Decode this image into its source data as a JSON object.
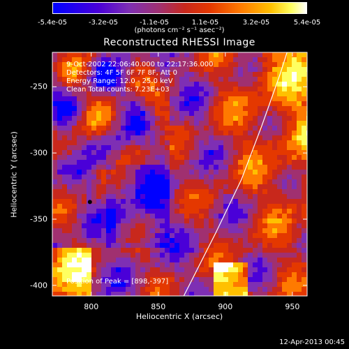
{
  "colorbar": {
    "ticks": [
      "-5.4e-05",
      "-3.2e-05",
      "-1.1e-05",
      "1.1e-05",
      "3.2e-05",
      "5.4e-05"
    ],
    "units": "(photons cm⁻² s⁻¹ asec⁻²)"
  },
  "info": {
    "time_range": "9-Oct-2002 22:06:40.000 to 22:17:36.000",
    "detectors": "Detectors: 4F 5F 6F 7F 8F, Att 0",
    "energy": "Energy Range: 12.0 - 25.0 keV",
    "clean": "Clean     Total counts: 7.23E+03",
    "peak": "Position of Peak = [898,-397]"
  },
  "footer": {
    "date": "12-Apr-2013 00:45"
  },
  "chart_data": {
    "type": "heatmap",
    "title": "Reconstructed RHESSI Image",
    "xlabel": "Heliocentric X (arcsec)",
    "ylabel": "Heliocentric Y (arcsec)",
    "xlim": [
      771,
      961
    ],
    "ylim": [
      -408,
      -224
    ],
    "xticks": [
      800,
      850,
      900,
      950
    ],
    "yticks": [
      -250,
      -300,
      -350,
      -400
    ],
    "zlim": [
      -5.4e-05,
      5.4e-05
    ],
    "peak_position": [
      898,
      -397
    ],
    "limb_line": [
      [
        869,
        -408
      ],
      [
        893,
        -360
      ],
      [
        912,
        -320
      ],
      [
        927,
        -280
      ],
      [
        941,
        -240
      ],
      [
        946,
        -224
      ]
    ],
    "colors": [
      "#0000ff",
      "#4a00d8",
      "#7e2fb4",
      "#a03070",
      "#c8281c",
      "#e43800",
      "#ff7a00",
      "#ffc000",
      "#ffff60",
      "#ffffff"
    ],
    "grid": false
  }
}
